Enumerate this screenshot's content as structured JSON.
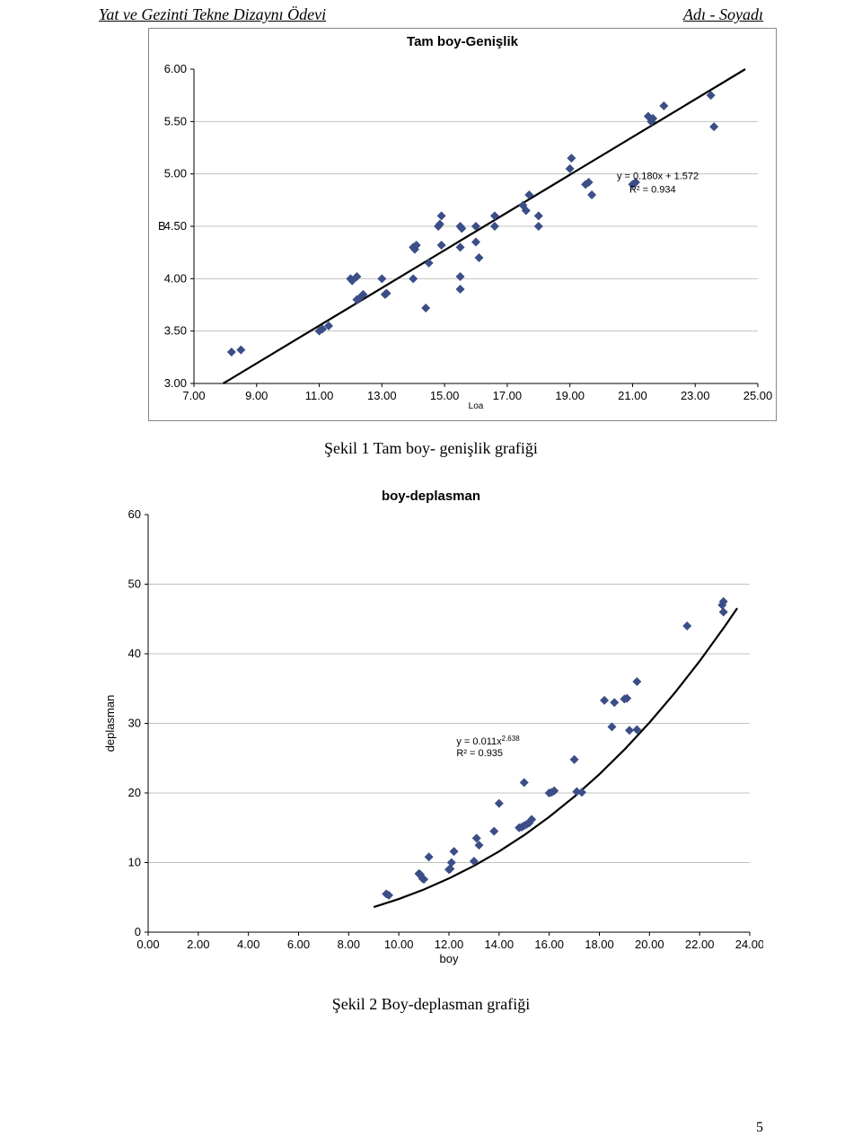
{
  "header": {
    "left": "Yat ve Gezinti Tekne Dizaynı Ödevi",
    "right": "Adı - Soyadı"
  },
  "page_number": "5",
  "chart1": {
    "type": "scatter",
    "title": "Tam boy-Genişlik",
    "xlabel": "Loa",
    "ylabel": "B",
    "eq_line1": "y = 0.180x + 1.572",
    "eq_line2": "R² = 0.934",
    "xlim": [
      7,
      25
    ],
    "ylim": [
      3,
      6
    ],
    "x_ticks": [
      "7.00",
      "9.00",
      "11.00",
      "13.00",
      "15.00",
      "17.00",
      "19.00",
      "21.00",
      "23.00",
      "25.00"
    ],
    "y_ticks": [
      "3.00",
      "3.50",
      "4.00",
      "4.50",
      "5.00",
      "5.50",
      "6.00"
    ],
    "marker_color": "#3b4e87",
    "marker_size": 5,
    "line_color": "#000000",
    "line_width": 2.2,
    "grid_color": "#c0c0c0",
    "background": "#ffffff",
    "caption": "Şekil 1 Tam boy- genişlik grafiği",
    "points": [
      [
        8.2,
        3.3
      ],
      [
        8.5,
        3.32
      ],
      [
        11.0,
        3.5
      ],
      [
        11.1,
        3.52
      ],
      [
        11.3,
        3.55
      ],
      [
        12.0,
        4.0
      ],
      [
        12.05,
        3.98
      ],
      [
        12.2,
        4.02
      ],
      [
        12.2,
        3.8
      ],
      [
        12.3,
        3.82
      ],
      [
        12.4,
        3.85
      ],
      [
        13.0,
        4.0
      ],
      [
        13.1,
        3.85
      ],
      [
        13.15,
        3.86
      ],
      [
        14.0,
        4.3
      ],
      [
        14.05,
        4.28
      ],
      [
        14.1,
        4.32
      ],
      [
        14.0,
        4.0
      ],
      [
        14.4,
        3.72
      ],
      [
        14.5,
        4.15
      ],
      [
        14.8,
        4.5
      ],
      [
        14.85,
        4.52
      ],
      [
        14.9,
        4.6
      ],
      [
        14.9,
        4.32
      ],
      [
        15.5,
        4.5
      ],
      [
        15.55,
        4.48
      ],
      [
        15.5,
        4.3
      ],
      [
        15.5,
        4.02
      ],
      [
        15.5,
        3.9
      ],
      [
        16.0,
        4.5
      ],
      [
        16.0,
        4.35
      ],
      [
        16.1,
        4.2
      ],
      [
        16.6,
        4.5
      ],
      [
        16.6,
        4.6
      ],
      [
        17.5,
        4.7
      ],
      [
        17.6,
        4.65
      ],
      [
        17.7,
        4.8
      ],
      [
        18.0,
        4.5
      ],
      [
        18.0,
        4.6
      ],
      [
        19.0,
        5.05
      ],
      [
        19.05,
        5.15
      ],
      [
        19.5,
        4.9
      ],
      [
        19.6,
        4.92
      ],
      [
        19.7,
        4.8
      ],
      [
        21.0,
        4.9
      ],
      [
        21.1,
        4.92
      ],
      [
        21.5,
        5.55
      ],
      [
        21.6,
        5.5
      ],
      [
        21.65,
        5.53
      ],
      [
        22.0,
        5.65
      ],
      [
        23.5,
        5.75
      ],
      [
        23.6,
        5.45
      ]
    ],
    "trend": [
      [
        7,
        2.832
      ],
      [
        25,
        6.072
      ]
    ]
  },
  "chart2": {
    "type": "scatter",
    "title": "boy-deplasman",
    "xlabel": "boy",
    "ylabel": "deplasman",
    "eq_line1": "y = 0.011x",
    "eq_exp": "2.638",
    "eq_line2": "R² = 0.935",
    "xlim": [
      0,
      24
    ],
    "ylim": [
      0,
      60
    ],
    "x_ticks": [
      "0.00",
      "2.00",
      "4.00",
      "6.00",
      "8.00",
      "10.00",
      "12.00",
      "14.00",
      "16.00",
      "18.00",
      "20.00",
      "22.00",
      "24.00"
    ],
    "y_ticks": [
      "0",
      "10",
      "20",
      "30",
      "40",
      "50",
      "60"
    ],
    "marker_color": "#3b4e87",
    "marker_size": 5,
    "line_color": "#000000",
    "line_width": 2.2,
    "grid_color": "#c0c0c0",
    "background": "#ffffff",
    "caption": "Şekil 2 Boy-deplasman grafiği",
    "points": [
      [
        9.5,
        5.5
      ],
      [
        9.6,
        5.3
      ],
      [
        10.8,
        8.4
      ],
      [
        10.85,
        8.3
      ],
      [
        10.95,
        7.7
      ],
      [
        11.0,
        7.6
      ],
      [
        11.2,
        10.8
      ],
      [
        12.0,
        9.0
      ],
      [
        12.05,
        9.1
      ],
      [
        12.1,
        10.0
      ],
      [
        12.2,
        11.6
      ],
      [
        13.0,
        10.2
      ],
      [
        13.1,
        13.5
      ],
      [
        13.2,
        12.5
      ],
      [
        13.8,
        14.5
      ],
      [
        14.0,
        18.5
      ],
      [
        14.8,
        15.0
      ],
      [
        14.9,
        15.1
      ],
      [
        15.0,
        15.3
      ],
      [
        15.1,
        15.5
      ],
      [
        15.0,
        21.5
      ],
      [
        15.2,
        15.7
      ],
      [
        15.3,
        16.2
      ],
      [
        16.0,
        20.0
      ],
      [
        16.1,
        20.1
      ],
      [
        16.2,
        20.3
      ],
      [
        17.0,
        24.8
      ],
      [
        17.1,
        20.2
      ],
      [
        17.3,
        20.1
      ],
      [
        18.2,
        33.3
      ],
      [
        18.6,
        33.0
      ],
      [
        18.5,
        29.5
      ],
      [
        19.0,
        33.5
      ],
      [
        19.1,
        33.6
      ],
      [
        19.2,
        29.0
      ],
      [
        19.5,
        29.1
      ],
      [
        19.5,
        36.0
      ],
      [
        21.5,
        44.0
      ],
      [
        22.9,
        47.0
      ],
      [
        22.95,
        46.0
      ],
      [
        22.95,
        47.5
      ]
    ],
    "curve_samples": [
      [
        9.0,
        3.61
      ],
      [
        10.0,
        4.77
      ],
      [
        11.0,
        6.13
      ],
      [
        12.0,
        7.72
      ],
      [
        13.0,
        9.54
      ],
      [
        14.0,
        11.61
      ],
      [
        15.0,
        13.94
      ],
      [
        16.0,
        16.56
      ],
      [
        17.0,
        19.47
      ],
      [
        18.0,
        22.69
      ],
      [
        19.0,
        26.23
      ],
      [
        20.0,
        30.11
      ],
      [
        21.0,
        34.34
      ],
      [
        22.0,
        38.94
      ],
      [
        23.0,
        43.92
      ],
      [
        23.5,
        46.55
      ]
    ]
  }
}
